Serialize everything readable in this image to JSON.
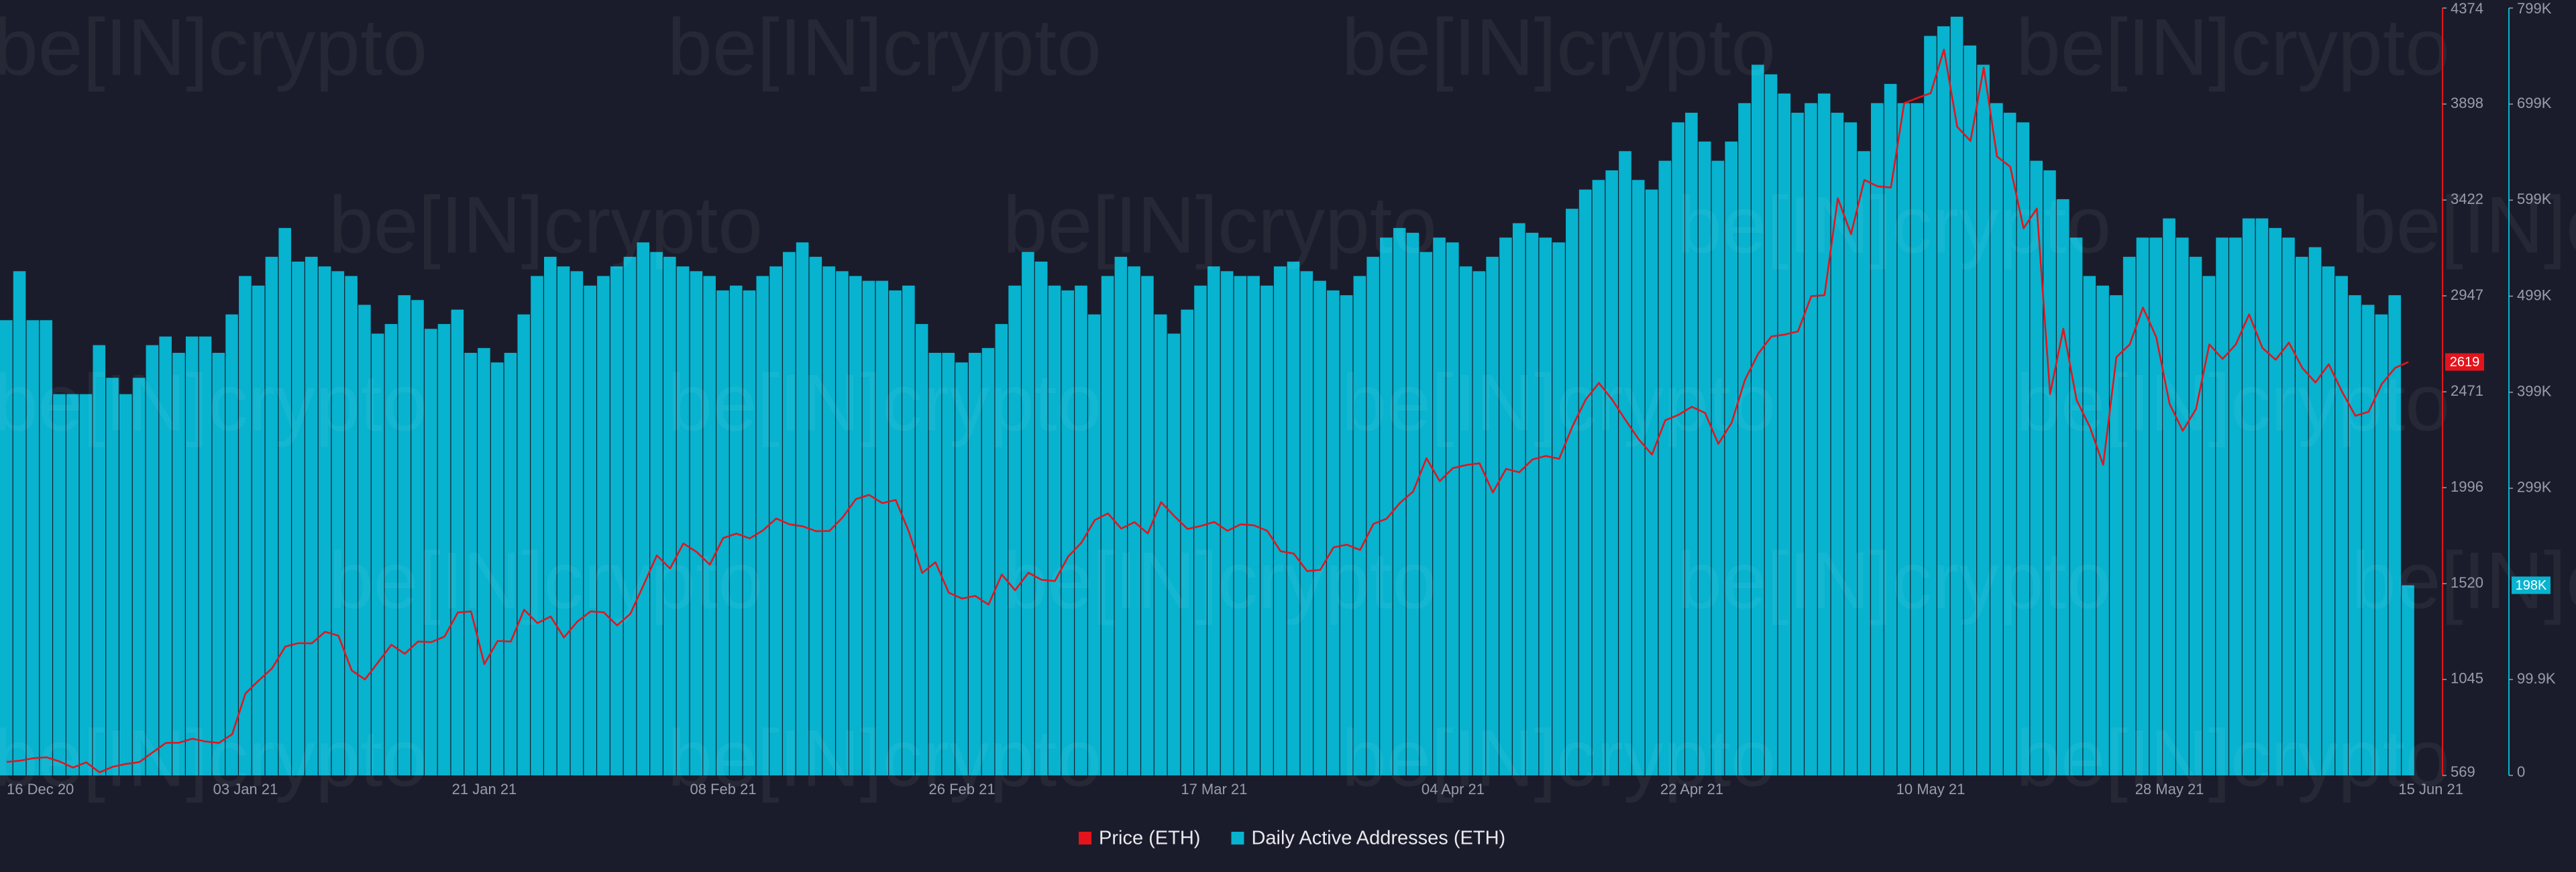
{
  "chart_data": {
    "type": "bar+line",
    "watermark": "be[IN]crypto",
    "x": [
      "16 Dec 20",
      "17 Dec 20",
      "18 Dec 20",
      "19 Dec 20",
      "20 Dec 20",
      "21 Dec 20",
      "22 Dec 20",
      "23 Dec 20",
      "24 Dec 20",
      "25 Dec 20",
      "26 Dec 20",
      "27 Dec 20",
      "28 Dec 20",
      "29 Dec 20",
      "30 Dec 20",
      "31 Dec 20",
      "01 Jan 21",
      "02 Jan 21",
      "03 Jan 21",
      "04 Jan 21",
      "05 Jan 21",
      "06 Jan 21",
      "07 Jan 21",
      "08 Jan 21",
      "09 Jan 21",
      "10 Jan 21",
      "11 Jan 21",
      "12 Jan 21",
      "13 Jan 21",
      "14 Jan 21",
      "15 Jan 21",
      "16 Jan 21",
      "17 Jan 21",
      "18 Jan 21",
      "19 Jan 21",
      "20 Jan 21",
      "21 Jan 21",
      "22 Jan 21",
      "23 Jan 21",
      "24 Jan 21",
      "25 Jan 21",
      "26 Jan 21",
      "27 Jan 21",
      "28 Jan 21",
      "29 Jan 21",
      "30 Jan 21",
      "31 Jan 21",
      "01 Feb 21",
      "02 Feb 21",
      "03 Feb 21",
      "04 Feb 21",
      "05 Feb 21",
      "06 Feb 21",
      "07 Feb 21",
      "08 Feb 21",
      "09 Feb 21",
      "10 Feb 21",
      "11 Feb 21",
      "12 Feb 21",
      "13 Feb 21",
      "14 Feb 21",
      "15 Feb 21",
      "16 Feb 21",
      "17 Feb 21",
      "18 Feb 21",
      "19 Feb 21",
      "20 Feb 21",
      "21 Feb 21",
      "22 Feb 21",
      "23 Feb 21",
      "24 Feb 21",
      "25 Feb 21",
      "26 Feb 21",
      "27 Feb 21",
      "28 Feb 21",
      "01 Mar 21",
      "02 Mar 21",
      "03 Mar 21",
      "04 Mar 21",
      "05 Mar 21",
      "06 Mar 21",
      "07 Mar 21",
      "08 Mar 21",
      "09 Mar 21",
      "10 Mar 21",
      "11 Mar 21",
      "12 Mar 21",
      "13 Mar 21",
      "14 Mar 21",
      "15 Mar 21",
      "16 Mar 21",
      "17 Mar 21",
      "18 Mar 21",
      "19 Mar 21",
      "20 Mar 21",
      "21 Mar 21",
      "22 Mar 21",
      "23 Mar 21",
      "24 Mar 21",
      "25 Mar 21",
      "26 Mar 21",
      "27 Mar 21",
      "28 Mar 21",
      "29 Mar 21",
      "30 Mar 21",
      "31 Mar 21",
      "01 Apr 21",
      "02 Apr 21",
      "03 Apr 21",
      "04 Apr 21",
      "05 Apr 21",
      "06 Apr 21",
      "07 Apr 21",
      "08 Apr 21",
      "09 Apr 21",
      "10 Apr 21",
      "11 Apr 21",
      "12 Apr 21",
      "13 Apr 21",
      "14 Apr 21",
      "15 Apr 21",
      "16 Apr 21",
      "17 Apr 21",
      "18 Apr 21",
      "19 Apr 21",
      "20 Apr 21",
      "21 Apr 21",
      "22 Apr 21",
      "23 Apr 21",
      "24 Apr 21",
      "25 Apr 21",
      "26 Apr 21",
      "27 Apr 21",
      "28 Apr 21",
      "29 Apr 21",
      "30 Apr 21",
      "01 May 21",
      "02 May 21",
      "03 May 21",
      "04 May 21",
      "05 May 21",
      "06 May 21",
      "07 May 21",
      "08 May 21",
      "09 May 21",
      "10 May 21",
      "11 May 21",
      "12 May 21",
      "13 May 21",
      "14 May 21",
      "15 May 21",
      "16 May 21",
      "17 May 21",
      "18 May 21",
      "19 May 21",
      "20 May 21",
      "21 May 21",
      "22 May 21",
      "23 May 21",
      "24 May 21",
      "25 May 21",
      "26 May 21",
      "27 May 21",
      "28 May 21",
      "29 May 21",
      "30 May 21",
      "31 May 21",
      "01 Jun 21",
      "02 Jun 21",
      "03 Jun 21",
      "04 Jun 21",
      "05 Jun 21",
      "06 Jun 21",
      "07 Jun 21",
      "08 Jun 21",
      "09 Jun 21",
      "10 Jun 21",
      "11 Jun 21",
      "12 Jun 21",
      "13 Jun 21",
      "14 Jun 21",
      "15 Jun 21"
    ],
    "xticks": [
      "16 Dec 20",
      "03 Jan 21",
      "21 Jan 21",
      "08 Feb 21",
      "26 Feb 21",
      "17 Mar 21",
      "04 Apr 21",
      "22 Apr 21",
      "10 May 21",
      "28 May 21",
      "15 Jun 21"
    ],
    "ylim": [
      569,
      4374
    ],
    "yticks": [
      569,
      1045,
      1520,
      1996,
      2471,
      2947,
      3422,
      3898,
      4374
    ],
    "y2lim": [
      0,
      799000
    ],
    "y2ticks": [
      0,
      {
        "value": 99900,
        "label": "99.9K"
      },
      {
        "value": 299000,
        "label": "299K"
      },
      {
        "value": 399000,
        "label": "399K"
      },
      {
        "value": 499000,
        "label": "499K"
      },
      {
        "value": 599000,
        "label": "599K"
      },
      {
        "value": 699000,
        "label": "699K"
      },
      {
        "value": 799000,
        "label": "799K"
      }
    ],
    "series": [
      {
        "name": "Daily Active Addresses (ETH)",
        "type": "bar",
        "axis": "y2",
        "color": "#07b3cf",
        "last_label": "198K",
        "values": [
          474000,
          525000,
          474000,
          474000,
          397000,
          397000,
          397000,
          448000,
          414000,
          397000,
          414000,
          448000,
          457000,
          440000,
          457000,
          457000,
          440000,
          480000,
          520000,
          510000,
          540000,
          570000,
          535000,
          540000,
          530000,
          525000,
          520000,
          490000,
          460000,
          470000,
          500000,
          495000,
          465000,
          470000,
          485000,
          440000,
          445000,
          430000,
          440000,
          480000,
          520000,
          540000,
          530000,
          525000,
          510000,
          520000,
          530000,
          540000,
          555000,
          545000,
          540000,
          530000,
          525000,
          520000,
          505000,
          510000,
          505000,
          520000,
          530000,
          545000,
          555000,
          540000,
          530000,
          525000,
          520000,
          515000,
          515000,
          505000,
          510000,
          470000,
          440000,
          440000,
          430000,
          440000,
          445000,
          470000,
          510000,
          545000,
          535000,
          510000,
          505000,
          510000,
          480000,
          520000,
          540000,
          530000,
          520000,
          480000,
          460000,
          485000,
          510000,
          530000,
          525000,
          520000,
          520000,
          510000,
          530000,
          535000,
          525000,
          515000,
          505000,
          500000,
          520000,
          540000,
          560000,
          570000,
          565000,
          545000,
          560000,
          555000,
          530000,
          525000,
          540000,
          560000,
          575000,
          565000,
          560000,
          555000,
          590000,
          610000,
          620000,
          630000,
          650000,
          620000,
          610000,
          640000,
          680000,
          690000,
          660000,
          640000,
          660000,
          700000,
          740000,
          730000,
          710000,
          690000,
          700000,
          710000,
          690000,
          680000,
          650000,
          700000,
          720000,
          700000,
          700000,
          770000,
          780000,
          790000,
          760000,
          740000,
          700000,
          690000,
          680000,
          640000,
          630000,
          600000,
          560000,
          520000,
          510000,
          500000,
          540000,
          560000,
          560000,
          580000,
          560000,
          540000,
          520000,
          560000,
          560000,
          580000,
          580000,
          570000,
          560000,
          540000,
          550000,
          530000,
          520000,
          500000,
          490000,
          480000,
          500000,
          198000
        ]
      },
      {
        "name": "Price (ETH)",
        "type": "line",
        "axis": "y",
        "color": "#e3141c",
        "last_label": "2619",
        "values": [
          636,
          642,
          654,
          659,
          638,
          608,
          634,
          584,
          612,
          626,
          635,
          683,
          730,
          731,
          751,
          737,
          730,
          774,
          975,
          1040,
          1100,
          1208,
          1225,
          1224,
          1281,
          1262,
          1090,
          1045,
          1130,
          1217,
          1172,
          1233,
          1230,
          1257,
          1377,
          1382,
          1121,
          1236,
          1233,
          1391,
          1324,
          1357,
          1253,
          1331,
          1382,
          1378,
          1313,
          1370,
          1513,
          1660,
          1595,
          1719,
          1677,
          1614,
          1746,
          1768,
          1744,
          1784,
          1843,
          1814,
          1804,
          1780,
          1781,
          1848,
          1939,
          1960,
          1919,
          1935,
          1777,
          1573,
          1626,
          1475,
          1446,
          1459,
          1416,
          1565,
          1487,
          1574,
          1539,
          1533,
          1654,
          1723,
          1835,
          1868,
          1793,
          1825,
          1769,
          1924,
          1855,
          1791,
          1806,
          1826,
          1782,
          1814,
          1809,
          1782,
          1681,
          1669,
          1582,
          1588,
          1700,
          1713,
          1687,
          1816,
          1842,
          1920,
          1977,
          2142,
          2028,
          2093,
          2108,
          2117,
          1972,
          2089,
          2072,
          2136,
          2153,
          2139,
          2300,
          2432,
          2515,
          2432,
          2331,
          2235,
          2160,
          2330,
          2357,
          2397,
          2366,
          2213,
          2318,
          2530,
          2660,
          2746,
          2755,
          2771,
          2945,
          2950,
          3431,
          3253,
          3522,
          3490,
          3484,
          3902,
          3928,
          3952,
          4168,
          3785,
          3715,
          4079,
          3638,
          3587,
          3282,
          3380,
          2460,
          2784,
          2430,
          2296,
          2109,
          2643,
          2706,
          2889,
          2742,
          2412,
          2278,
          2386,
          2706,
          2634,
          2707,
          2855,
          2689,
          2630,
          2715,
          2590,
          2517,
          2608,
          2472,
          2352,
          2372,
          2510,
          2590,
          2619
        ]
      }
    ]
  }
}
